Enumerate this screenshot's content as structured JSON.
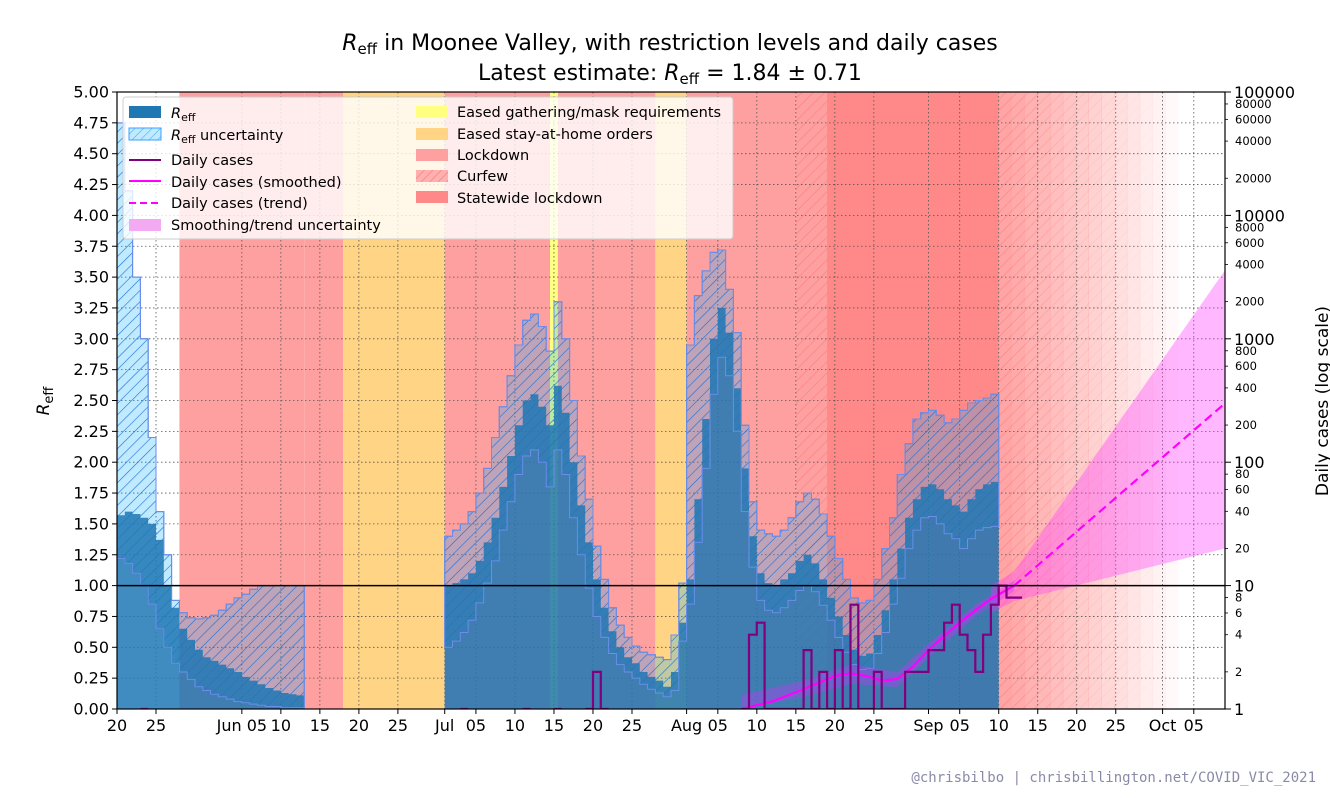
{
  "chart_data": {
    "type": "area",
    "title": "R_eff in Moonee Valley, with restriction levels and daily cases",
    "subtitle": "Latest estimate: R_eff = 1.84 ± 0.71",
    "title_parts": {
      "pre": "",
      "sym": "R",
      "sub": "eff",
      "post": " in Moonee Valley, with restriction levels and daily cases"
    },
    "subtitle_parts": {
      "pre": "Latest estimate: ",
      "sym": "R",
      "sub": "eff",
      "post": " = 1.84 ± 0.71"
    },
    "ylabel_left": {
      "sym": "R",
      "sub": "eff"
    },
    "ylabel_right": "Daily cases (log scale)",
    "credit": "@chrisbilbo | chrisbillington.net/COVID_VIC_2021",
    "ylim_left": [
      0,
      5
    ],
    "ylim_right_log": [
      1,
      100000
    ],
    "xlim_days": [
      0,
      142
    ],
    "x_axis_start_date": "2021-05-20",
    "x_ticks": [
      {
        "day": 0,
        "label": "20"
      },
      {
        "day": 5,
        "label": "25"
      },
      {
        "day": 16,
        "label": "Jun 05"
      },
      {
        "day": 21,
        "label": "10"
      },
      {
        "day": 26,
        "label": "15"
      },
      {
        "day": 31,
        "label": "20"
      },
      {
        "day": 36,
        "label": "25"
      },
      {
        "day": 42,
        "label": "Jul"
      },
      {
        "day": 46,
        "label": "05"
      },
      {
        "day": 51,
        "label": "10"
      },
      {
        "day": 56,
        "label": "15"
      },
      {
        "day": 61,
        "label": "20"
      },
      {
        "day": 66,
        "label": "25"
      },
      {
        "day": 73,
        "label": "Aug"
      },
      {
        "day": 77,
        "label": "05"
      },
      {
        "day": 82,
        "label": "10"
      },
      {
        "day": 87,
        "label": "15"
      },
      {
        "day": 92,
        "label": "20"
      },
      {
        "day": 97,
        "label": "25"
      },
      {
        "day": 104,
        "label": "Sep"
      },
      {
        "day": 108,
        "label": "05"
      },
      {
        "day": 113,
        "label": "10"
      },
      {
        "day": 118,
        "label": "15"
      },
      {
        "day": 123,
        "label": "20"
      },
      {
        "day": 128,
        "label": "25"
      },
      {
        "day": 134,
        "label": "Oct"
      },
      {
        "day": 138,
        "label": "05"
      }
    ],
    "y_ticks_left": [
      "0.00",
      "0.25",
      "0.50",
      "0.75",
      "1.00",
      "1.25",
      "1.50",
      "1.75",
      "2.00",
      "2.25",
      "2.50",
      "2.75",
      "3.00",
      "3.25",
      "3.50",
      "3.75",
      "4.00",
      "4.25",
      "4.50",
      "4.75",
      "5.00"
    ],
    "y_ticks_right_major": [
      "1",
      "10",
      "100",
      "1000",
      "10000",
      "100000"
    ],
    "y_ticks_right_minor": [
      {
        "v": 2,
        "label": "2"
      },
      {
        "v": 4,
        "label": "4"
      },
      {
        "v": 6,
        "label": "6"
      },
      {
        "v": 8,
        "label": "8"
      },
      {
        "v": 20,
        "label": "20"
      },
      {
        "v": 40,
        "label": "40"
      },
      {
        "v": 60,
        "label": "60"
      },
      {
        "v": 80,
        "label": "80"
      },
      {
        "v": 200,
        "label": "200"
      },
      {
        "v": 400,
        "label": "400"
      },
      {
        "v": 600,
        "label": "600"
      },
      {
        "v": 800,
        "label": "800"
      },
      {
        "v": 2000,
        "label": "2000"
      },
      {
        "v": 4000,
        "label": "4000"
      },
      {
        "v": 6000,
        "label": "6000"
      },
      {
        "v": 8000,
        "label": "8000"
      },
      {
        "v": 20000,
        "label": "20000"
      },
      {
        "v": 40000,
        "label": "40000"
      },
      {
        "v": 60000,
        "label": "60000"
      },
      {
        "v": 80000,
        "label": "80000"
      }
    ],
    "restrictions": [
      {
        "kind": "lockdown",
        "start": 8,
        "end": 24
      },
      {
        "kind": "lockdown",
        "start": 24,
        "end": 29
      },
      {
        "kind": "stay_at_home_eased",
        "start": 29,
        "end": 42
      },
      {
        "kind": "lockdown",
        "start": 42,
        "end": 55.5
      },
      {
        "kind": "gathering_eased",
        "start": 55.5,
        "end": 56.5
      },
      {
        "kind": "lockdown",
        "start": 56.5,
        "end": 69
      },
      {
        "kind": "stay_at_home_eased",
        "start": 69,
        "end": 73
      },
      {
        "kind": "lockdown",
        "start": 73,
        "end": 87
      },
      {
        "kind": "curfew",
        "start": 87,
        "end": 113
      },
      {
        "kind": "statewide_lockdown",
        "start": 91,
        "end": 113
      },
      {
        "kind": "curfew_fade",
        "start": 113,
        "end": 136
      }
    ],
    "reff_values": [
      1.57,
      1.6,
      1.58,
      1.55,
      1.5,
      1.37,
      1.0,
      0.82,
      0.65,
      0.56,
      0.48,
      0.42,
      0.39,
      0.36,
      0.33,
      0.3,
      0.26,
      0.23,
      0.2,
      0.17,
      0.15,
      0.13,
      0.12,
      0.11,
      0,
      0,
      0,
      0,
      0,
      0,
      0,
      0,
      0,
      0,
      0,
      0,
      0,
      0,
      0,
      0,
      0,
      0,
      1.0,
      1.02,
      1.05,
      1.1,
      1.2,
      1.35,
      1.55,
      1.8,
      2.05,
      2.3,
      2.5,
      2.55,
      2.45,
      2.3,
      2.62,
      2.4,
      2.0,
      1.65,
      1.35,
      1.05,
      0.82,
      0.63,
      0.5,
      0.42,
      0.37,
      0.3,
      0.26,
      0.23,
      0.18,
      0.3,
      0.7,
      1.05,
      1.7,
      2.35,
      3.0,
      3.25,
      3.05,
      2.6,
      1.95,
      1.4,
      1.1,
      1.02,
      1.0,
      1.05,
      1.1,
      1.2,
      1.25,
      1.18,
      1.05,
      0.9,
      0.75,
      0.6,
      0.48,
      0.43,
      0.45,
      0.6,
      0.8,
      1.05,
      1.3,
      1.55,
      1.7,
      1.8,
      1.82,
      1.78,
      1.7,
      1.65,
      1.6,
      1.7,
      1.78,
      1.82,
      1.84
    ],
    "reff_lower": [
      1.22,
      1.18,
      1.1,
      1.0,
      0.85,
      0.65,
      0.5,
      0.37,
      0.3,
      0.24,
      0.18,
      0.15,
      0.12,
      0.1,
      0.08,
      0.06,
      0.05,
      0.04,
      0.03,
      0.02,
      0.02,
      0.01,
      0.01,
      0.01,
      0,
      0,
      0,
      0,
      0,
      0,
      0,
      0,
      0,
      0,
      0,
      0,
      0,
      0,
      0,
      0,
      0,
      0,
      0.5,
      0.55,
      0.62,
      0.72,
      0.86,
      1.02,
      1.2,
      1.45,
      1.68,
      1.9,
      2.05,
      2.1,
      2.0,
      1.8,
      2.1,
      1.9,
      1.55,
      1.25,
      0.98,
      0.75,
      0.58,
      0.45,
      0.36,
      0.3,
      0.25,
      0.2,
      0.16,
      0.13,
      0.1,
      0.15,
      0.55,
      0.85,
      1.35,
      1.95,
      2.55,
      2.85,
      2.7,
      2.25,
      1.6,
      1.15,
      0.88,
      0.8,
      0.78,
      0.82,
      0.88,
      0.96,
      1.0,
      0.95,
      0.84,
      0.72,
      0.58,
      0.46,
      0.36,
      0.32,
      0.33,
      0.45,
      0.62,
      0.85,
      1.06,
      1.3,
      1.45,
      1.55,
      1.56,
      1.5,
      1.42,
      1.38,
      1.3,
      1.38,
      1.45,
      1.47,
      1.48
    ],
    "reff_upper": [
      4.75,
      4.2,
      3.5,
      3.0,
      2.2,
      1.6,
      1.25,
      0.88,
      0.78,
      0.74,
      0.73,
      0.74,
      0.76,
      0.8,
      0.85,
      0.9,
      0.93,
      0.97,
      1.0,
      1.0,
      1.0,
      1.0,
      1.0,
      1.0,
      0,
      0,
      0,
      0,
      0,
      0,
      0,
      0,
      0,
      0,
      0,
      0,
      0,
      0,
      0,
      0,
      0,
      0,
      1.4,
      1.45,
      1.5,
      1.6,
      1.75,
      1.95,
      2.2,
      2.45,
      2.7,
      2.95,
      3.15,
      3.2,
      3.1,
      2.9,
      3.3,
      3.0,
      2.5,
      2.05,
      1.7,
      1.32,
      1.05,
      0.82,
      0.68,
      0.58,
      0.51,
      0.46,
      0.44,
      0.42,
      0.4,
      0.6,
      1.02,
      2.95,
      3.35,
      3.55,
      3.7,
      3.72,
      3.4,
      3.05,
      2.3,
      1.68,
      1.45,
      1.42,
      1.4,
      1.45,
      1.55,
      1.68,
      1.75,
      1.7,
      1.58,
      1.4,
      1.22,
      1.05,
      0.9,
      0.86,
      0.88,
      1.05,
      1.3,
      1.55,
      1.9,
      2.15,
      2.35,
      2.4,
      2.42,
      2.38,
      2.32,
      2.35,
      2.42,
      2.48,
      2.5,
      2.52,
      2.55
    ],
    "daily_cases": [
      {
        "day": 3,
        "v": 1
      },
      {
        "day": 44,
        "v": 1
      },
      {
        "day": 52,
        "v": 1
      },
      {
        "day": 56,
        "v": 1
      },
      {
        "day": 60,
        "v": 1
      },
      {
        "day": 61,
        "v": 2
      },
      {
        "day": 62,
        "v": 1
      },
      {
        "day": 80,
        "v": 1
      },
      {
        "day": 81,
        "v": 4
      },
      {
        "day": 82,
        "v": 5
      },
      {
        "day": 83,
        "v": 1
      },
      {
        "day": 85,
        "v": 1
      },
      {
        "day": 86,
        "v": 1
      },
      {
        "day": 87,
        "v": 1
      },
      {
        "day": 88,
        "v": 3
      },
      {
        "day": 89,
        "v": 1
      },
      {
        "day": 90,
        "v": 2
      },
      {
        "day": 91,
        "v": 1
      },
      {
        "day": 92,
        "v": 3
      },
      {
        "day": 93,
        "v": 1
      },
      {
        "day": 94,
        "v": 7
      },
      {
        "day": 95,
        "v": 1
      },
      {
        "day": 96,
        "v": 1
      },
      {
        "day": 97,
        "v": 2
      },
      {
        "day": 98,
        "v": 1
      },
      {
        "day": 99,
        "v": 1
      },
      {
        "day": 100,
        "v": 1
      },
      {
        "day": 101,
        "v": 2
      },
      {
        "day": 102,
        "v": 2
      },
      {
        "day": 103,
        "v": 2
      },
      {
        "day": 104,
        "v": 3
      },
      {
        "day": 105,
        "v": 3
      },
      {
        "day": 106,
        "v": 5
      },
      {
        "day": 107,
        "v": 7
      },
      {
        "day": 108,
        "v": 4
      },
      {
        "day": 109,
        "v": 3
      },
      {
        "day": 110,
        "v": 2
      },
      {
        "day": 111,
        "v": 4
      },
      {
        "day": 112,
        "v": 7
      },
      {
        "day": 113,
        "v": 10
      },
      {
        "day": 114,
        "v": 8
      },
      {
        "day": 115,
        "v": 8
      }
    ],
    "smoothed": [
      {
        "day": 80,
        "v": 1.0
      },
      {
        "day": 84,
        "v": 1.15
      },
      {
        "day": 88,
        "v": 1.45
      },
      {
        "day": 92,
        "v": 1.85
      },
      {
        "day": 94,
        "v": 1.95
      },
      {
        "day": 96,
        "v": 1.85
      },
      {
        "day": 98,
        "v": 1.7
      },
      {
        "day": 100,
        "v": 1.75
      },
      {
        "day": 102,
        "v": 2.2
      },
      {
        "day": 104,
        "v": 3.0
      },
      {
        "day": 106,
        "v": 3.9
      },
      {
        "day": 108,
        "v": 5.0
      },
      {
        "day": 110,
        "v": 6.3
      },
      {
        "day": 112,
        "v": 7.8
      },
      {
        "day": 115,
        "v": 10.0
      }
    ],
    "trend": [
      {
        "day": 115,
        "v": 10.0
      },
      {
        "day": 142,
        "v": 300
      }
    ],
    "trend_band": [
      {
        "day": 112,
        "lo": 6.0,
        "hi": 10.0
      },
      {
        "day": 115,
        "lo": 7.5,
        "hi": 13.0
      },
      {
        "day": 142,
        "lo": 20,
        "hi": 3600
      }
    ],
    "smooth_band": [
      {
        "day": 80,
        "lo": 1.0,
        "hi": 1.3
      },
      {
        "day": 88,
        "lo": 1.25,
        "hi": 1.7
      },
      {
        "day": 94,
        "lo": 1.6,
        "hi": 2.3
      },
      {
        "day": 100,
        "lo": 1.5,
        "hi": 2.0
      },
      {
        "day": 104,
        "lo": 2.6,
        "hi": 3.4
      },
      {
        "day": 110,
        "lo": 5.6,
        "hi": 7.0
      },
      {
        "day": 115,
        "lo": 9.0,
        "hi": 11.0
      }
    ],
    "legend": {
      "col1": [
        {
          "key": "reff",
          "sym": "R",
          "sub": "eff",
          "post": ""
        },
        {
          "key": "reff_unc",
          "sym": "R",
          "sub": "eff",
          "post": " uncertainty"
        },
        {
          "key": "daily",
          "text": "Daily cases"
        },
        {
          "key": "smoothed",
          "text": "Daily cases (smoothed)"
        },
        {
          "key": "trend",
          "text": "Daily cases (trend)"
        },
        {
          "key": "smooth_unc",
          "text": "Smoothing/trend uncertainty"
        }
      ],
      "col2": [
        {
          "key": "gathering",
          "text": "Eased gathering/mask requirements"
        },
        {
          "key": "stayhome",
          "text": "Eased stay-at-home orders"
        },
        {
          "key": "lockdown",
          "text": "Lockdown"
        },
        {
          "key": "curfew",
          "text": "Curfew"
        },
        {
          "key": "statewide",
          "text": "Statewide lockdown"
        }
      ],
      "placement": "top-left"
    },
    "colors": {
      "reff": "#1f77b4",
      "reff_unc": "#00aaff",
      "daily": "#800080",
      "smoothed": "#ff00ff",
      "lockdown": "#ffa0a0",
      "curfew": "#ff9595",
      "statewide": "#ff8888",
      "stay_at_home_eased": "#ffd485",
      "gathering_eased": "#ffff80"
    },
    "grid": true
  }
}
